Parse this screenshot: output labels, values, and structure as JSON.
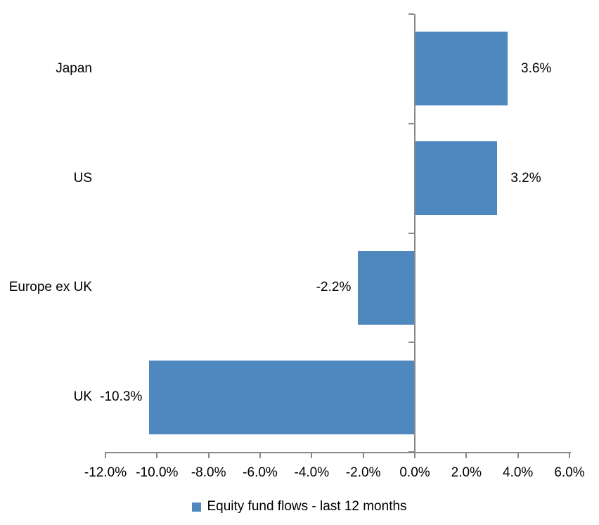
{
  "chart_data": {
    "type": "bar",
    "orientation": "horizontal",
    "categories": [
      "Japan",
      "US",
      "Europe ex UK",
      "UK"
    ],
    "values": [
      3.6,
      3.2,
      -2.2,
      -10.3
    ],
    "data_labels": [
      "3.6%",
      "3.2%",
      "-2.2%",
      "-10.3%"
    ],
    "x_ticks": [
      "-12.0%",
      "-10.0%",
      "-8.0%",
      "-6.0%",
      "-4.0%",
      "-2.0%",
      "0.0%",
      "2.0%",
      "4.0%",
      "6.0%"
    ],
    "x_tick_values": [
      -12,
      -10,
      -8,
      -6,
      -4,
      -2,
      0,
      2,
      4,
      6
    ],
    "xlim": [
      -12,
      6
    ],
    "grid": false,
    "legend_position": "bottom",
    "legend": [
      {
        "label": "Equity fund flows - last 12 months",
        "color": "#4F88BF"
      }
    ],
    "bar_color": "#4F88BF",
    "axis_color": "#898989",
    "text_color": "#000000",
    "background": "#FFFFFF"
  }
}
